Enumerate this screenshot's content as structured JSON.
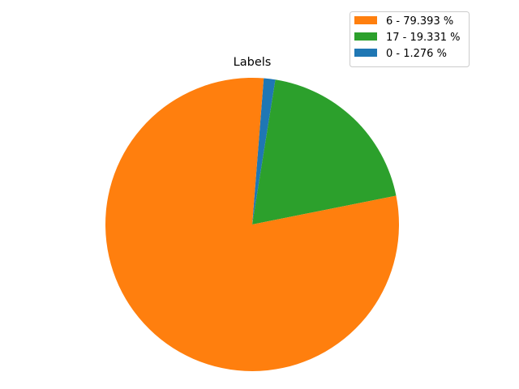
{
  "chart_data": {
    "type": "pie",
    "title": "Labels",
    "legend_position": "top-right",
    "slices": [
      {
        "label": "6 - 79.393 %",
        "category": "6",
        "percent": 79.393,
        "color": "#ff7f0e"
      },
      {
        "label": "17 - 19.331 %",
        "category": "17",
        "percent": 19.331,
        "color": "#2ca02c"
      },
      {
        "label": "0 - 1.276 %",
        "category": "0",
        "percent": 1.276,
        "color": "#1f77b4"
      }
    ]
  }
}
